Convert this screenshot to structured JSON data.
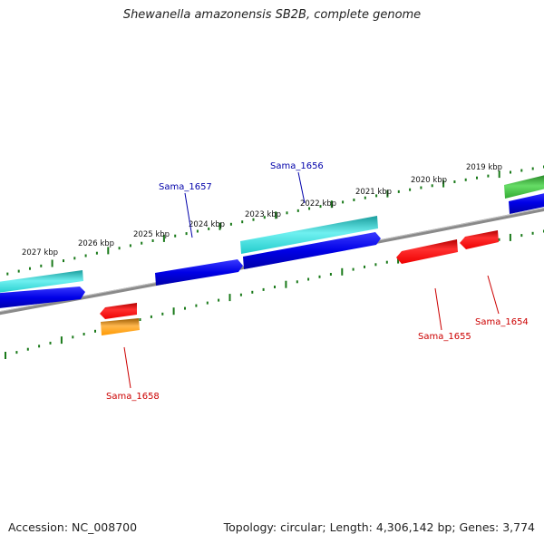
{
  "title": "Shewanella amazonensis SB2B, complete genome",
  "footer": {
    "accession": "Accession: NC_008700",
    "summary": "Topology: circular; Length: 4,306,142 bp; Genes: 3,774"
  },
  "ruler": {
    "tick_labels": [
      "2027 kbp",
      "2026 kbp",
      "2025 kbp",
      "2024 kbp",
      "2023 kbp",
      "2022 kbp",
      "2021 kbp",
      "2020 kbp",
      "2019 kbp"
    ]
  },
  "gene_labels": [
    {
      "name": "Sama_1657",
      "strand": "plus"
    },
    {
      "name": "Sama_1656",
      "strand": "plus"
    },
    {
      "name": "Sama_1658",
      "strand": "minus"
    },
    {
      "name": "Sama_1655",
      "strand": "minus"
    },
    {
      "name": "Sama_1654",
      "strand": "minus"
    }
  ],
  "colors": {
    "backbone": "#808080",
    "tick": "#1a7a1a",
    "cds_plus": "#0000e6",
    "cds_plus_label": "#0000aa",
    "cds_minus": "#ee0000",
    "cds_minus_label": "#cc0000",
    "feature_cyan": "#22cccc",
    "feature_orange": "#ff9900",
    "feature_green": "#33aa33"
  }
}
